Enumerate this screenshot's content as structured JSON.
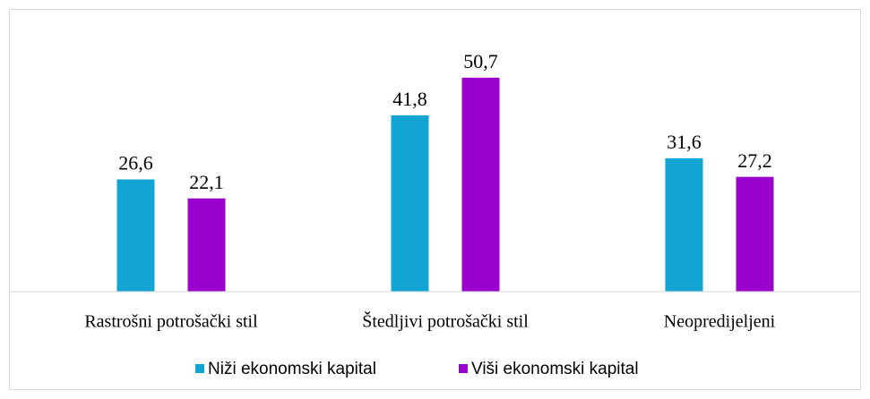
{
  "chart_data": {
    "type": "bar",
    "categories": [
      "Rastrošni potrošački stil",
      "Štedljivi potrošački stil",
      "Neopredijeljeni"
    ],
    "series": [
      {
        "name": "Niži ekonomski kapital",
        "color": "#12a5d4",
        "values": [
          26.6,
          41.8,
          31.6
        ],
        "value_labels": [
          "26,6",
          "41,8",
          "31,6"
        ]
      },
      {
        "name": "Viši ekonomski kapital",
        "color": "#9900cc",
        "values": [
          22.1,
          50.7,
          27.2
        ],
        "value_labels": [
          "22,1",
          "50,7",
          "27,2"
        ]
      }
    ],
    "ylim": [
      0,
      60
    ],
    "legend": "bottom"
  }
}
